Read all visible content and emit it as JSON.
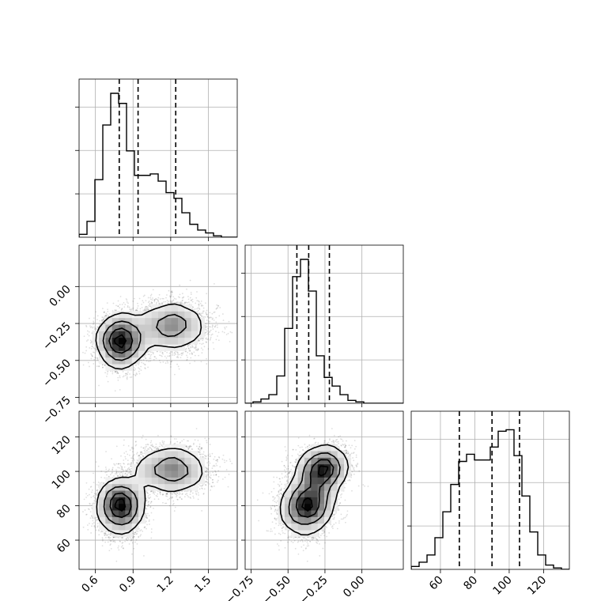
{
  "chart_data": {
    "type": "corner",
    "parameters": [
      "",
      "",
      ""
    ],
    "quantiles": [
      [
        0.79,
        0.94,
        1.24
      ],
      [
        -0.44,
        -0.36,
        -0.22
      ],
      [
        71,
        90,
        106
      ]
    ],
    "ranges": [
      [
        0.47,
        1.73
      ],
      [
        -0.79,
        0.28
      ],
      [
        43,
        135
      ]
    ],
    "ticks": [
      {
        "values": [
          0.6,
          0.9,
          1.2,
          1.5
        ],
        "labels": [
          "0.6",
          "0.9",
          "1.2",
          "1.5"
        ]
      },
      {
        "values": [
          -0.75,
          -0.5,
          -0.25,
          0.0
        ],
        "labels": [
          "−0.75",
          "−0.50",
          "−0.25",
          "0.00"
        ]
      },
      {
        "values": [
          60,
          80,
          100,
          120
        ],
        "labels": [
          "60",
          "80",
          "100",
          "120"
        ]
      }
    ],
    "histograms": [
      {
        "edges_start": 0.47,
        "bin_width": 0.063,
        "counts": [
          0.02,
          0.11,
          0.4,
          0.78,
          1.0,
          0.93,
          0.6,
          0.43,
          0.43,
          0.44,
          0.39,
          0.31,
          0.27,
          0.17,
          0.09,
          0.05,
          0.03,
          0.01,
          0.0,
          0.0
        ]
      },
      {
        "edges_start": -0.79,
        "bin_width": 0.0535,
        "counts": [
          0.0,
          0.01,
          0.03,
          0.06,
          0.19,
          0.52,
          0.88,
          1.0,
          0.78,
          0.33,
          0.18,
          0.12,
          0.06,
          0.02,
          0.01,
          0.0,
          0.0,
          0.0,
          0.0,
          0.0
        ]
      },
      {
        "edges_start": 43,
        "bin_width": 4.6,
        "counts": [
          0.02,
          0.05,
          0.1,
          0.22,
          0.4,
          0.59,
          0.75,
          0.8,
          0.76,
          0.76,
          0.85,
          0.96,
          0.97,
          0.79,
          0.51,
          0.26,
          0.1,
          0.03,
          0.01,
          0.0
        ]
      }
    ],
    "modes": [
      {
        "x": 0.8,
        "y": 80,
        "sx": 0.09,
        "sy": 8,
        "weight": 0.55
      },
      {
        "x": 1.2,
        "y": 101,
        "sx": 0.15,
        "sy": 7,
        "weight": 0.45
      }
    ],
    "mode_y1": [
      -0.37,
      -0.27
    ],
    "corr_y1_y2": 0.3,
    "grid": true
  }
}
